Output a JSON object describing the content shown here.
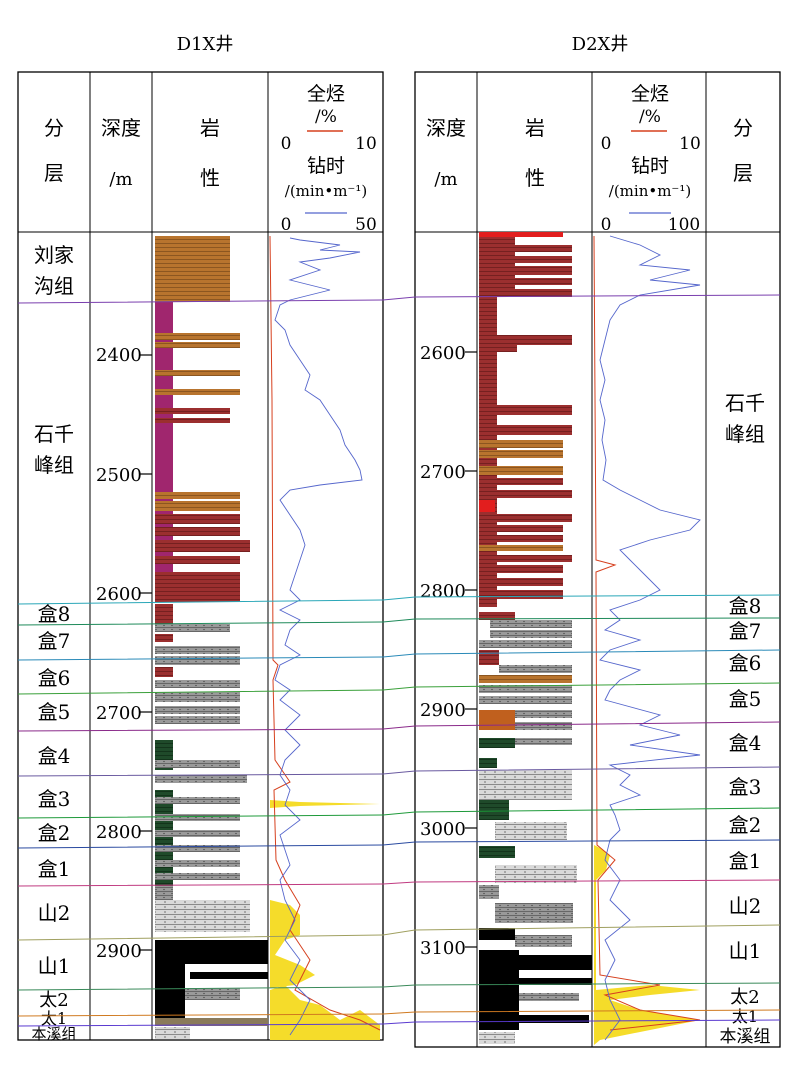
{
  "wells": [
    {
      "id": "d1x",
      "title": "D1X井",
      "headers": {
        "layer": [
          "分",
          "层"
        ],
        "depth": [
          "深度",
          "/m"
        ],
        "litho": [
          "岩",
          "性"
        ],
        "curves": {
          "line1": "全烃",
          "line2": "/%",
          "gas_min": "0",
          "gas_max": "10",
          "line3": "钻时",
          "line4": "/(min•m⁻¹)",
          "rop_min": "0",
          "rop_max": "50"
        }
      },
      "depth_ticks": [
        "2400",
        "2500",
        "2600",
        "2700",
        "2800",
        "2900"
      ],
      "layer_labels": [
        "刘家",
        "沟组",
        "石千",
        "峰组",
        "盒8",
        "盒7",
        "盒6",
        "盒5",
        "盒4",
        "盒3",
        "盒2",
        "盒1",
        "山2",
        "山1",
        "太2",
        "太1",
        "本溪组"
      ]
    },
    {
      "id": "d2x",
      "title": "D2X井",
      "headers": {
        "depth": [
          "深度",
          "/m"
        ],
        "litho": [
          "岩",
          "性"
        ],
        "layer": [
          "分",
          "层"
        ],
        "curves": {
          "line1": "全烃",
          "line2": "/%",
          "gas_min": "0",
          "gas_max": "10",
          "line3": "钻时",
          "line4": "/(min•m⁻¹)",
          "rop_min": "0",
          "rop_max": "100"
        }
      },
      "depth_ticks": [
        "2600",
        "2700",
        "2800",
        "2900",
        "3000",
        "3100"
      ],
      "layer_labels": [
        "石千",
        "峰组",
        "盒8",
        "盒7",
        "盒6",
        "盒5",
        "盒4",
        "盒3",
        "盒2",
        "盒1",
        "山2",
        "山1",
        "太2",
        "太1",
        "本溪组"
      ]
    }
  ],
  "colors": {
    "mudstone_red": "#9b2f2f",
    "sandstone_brown": "#b8742e",
    "purple_mudstone": "#a0266e",
    "gray_sandstone": "#8a8a8a",
    "dark_green": "#1f4a2a",
    "coal": "#000000",
    "gas_fill": "#f5dc2a",
    "gas_line": "#d6401e",
    "rop_line": "#5566cc",
    "red_bed": "#e21e1e"
  },
  "icons": [
    "line-legend-red",
    "line-legend-blue"
  ]
}
